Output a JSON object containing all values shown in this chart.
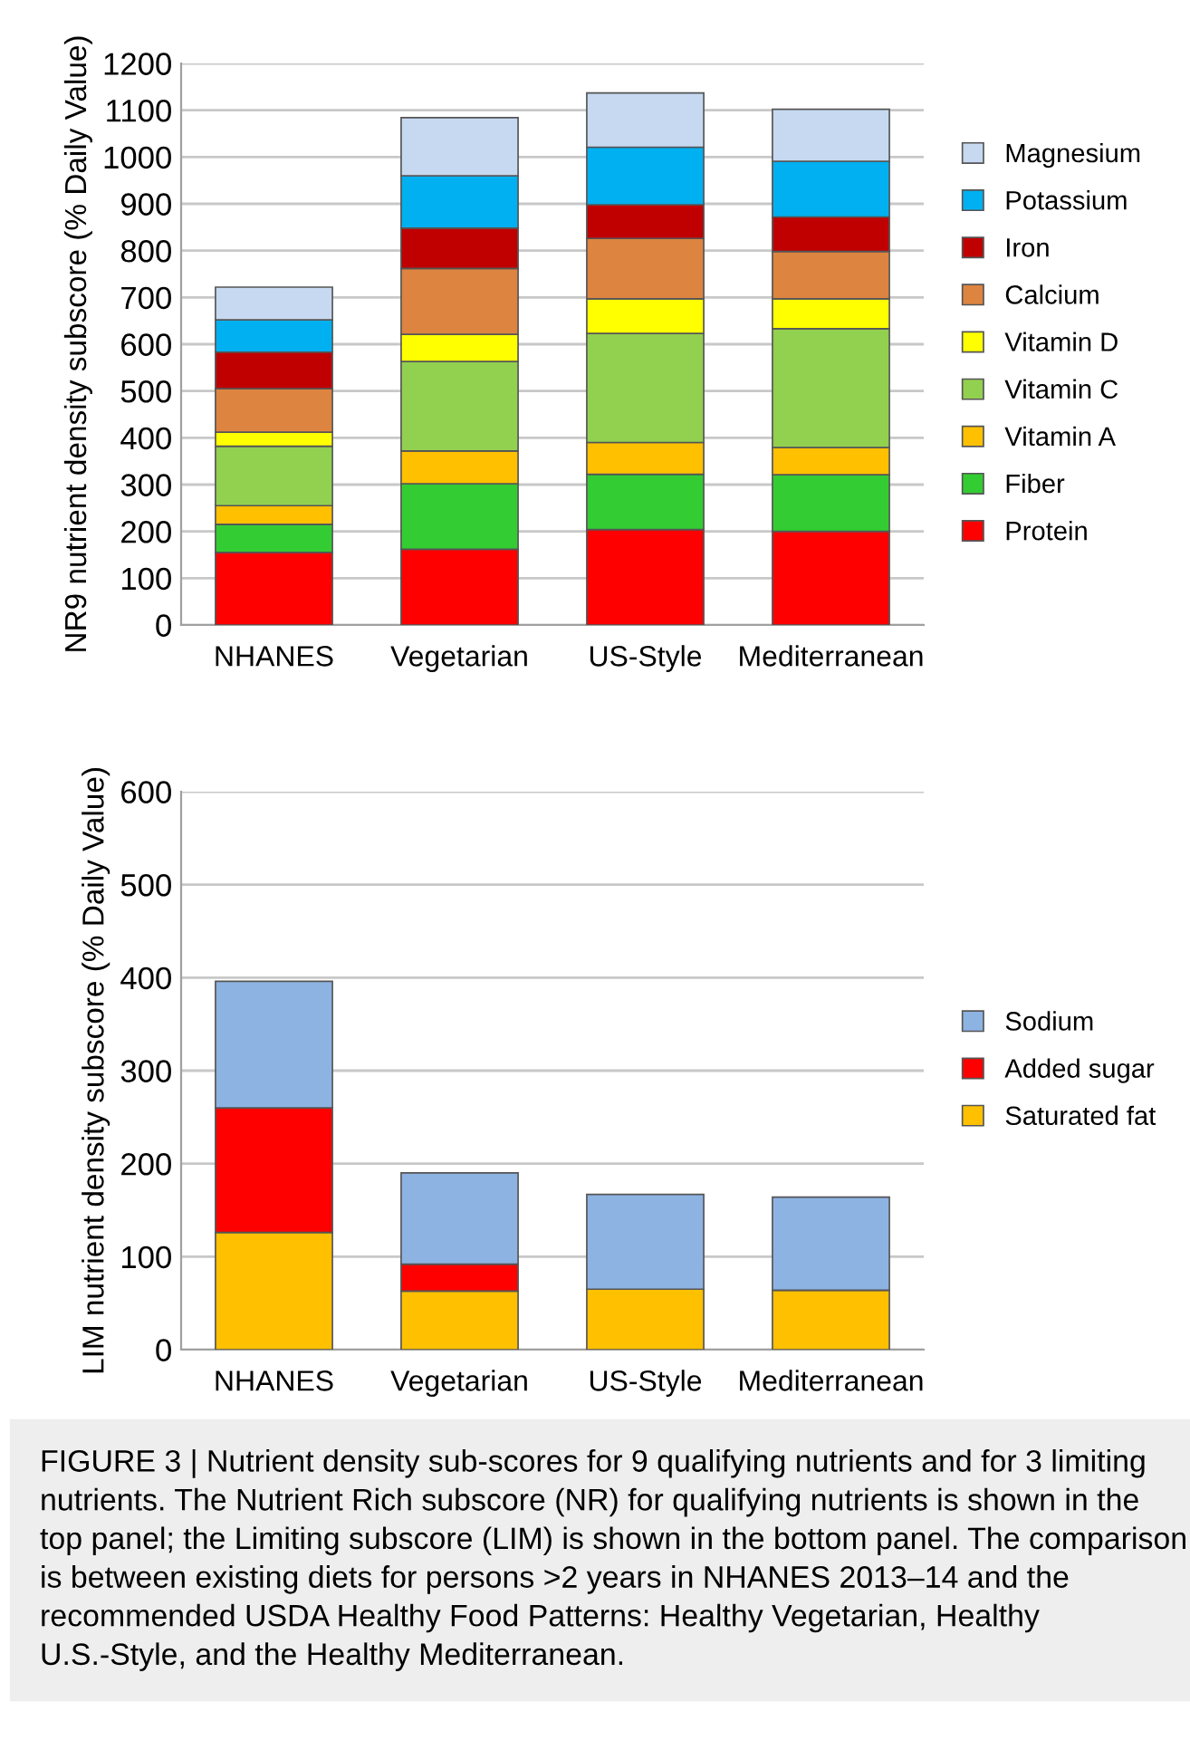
{
  "chart_data": [
    {
      "type": "bar",
      "stacked": true,
      "ylabel": "NR9 nutrient density subscore (% Daily Value)",
      "categories": [
        "NHANES",
        "Vegetarian",
        "US-Style",
        "Mediterranean"
      ],
      "ylim": [
        0,
        1200
      ],
      "yticks": [
        0,
        100,
        200,
        300,
        400,
        500,
        600,
        700,
        800,
        900,
        1000,
        1100,
        1200
      ],
      "grid": "y",
      "legend": "right",
      "series": [
        {
          "name": "Protein",
          "color": "#ff0000",
          "values": [
            155,
            162,
            204,
            200
          ]
        },
        {
          "name": "Fiber",
          "color": "#33cc33",
          "values": [
            60,
            140,
            118,
            121
          ]
        },
        {
          "name": "Vitamin A",
          "color": "#ffc000",
          "values": [
            40,
            70,
            68,
            58
          ]
        },
        {
          "name": "Vitamin C",
          "color": "#92d050",
          "values": [
            127,
            191,
            233,
            254
          ]
        },
        {
          "name": "Vitamin D",
          "color": "#ffff00",
          "values": [
            30,
            58,
            74,
            64
          ]
        },
        {
          "name": "Calcium",
          "color": "#dd8440",
          "values": [
            93,
            141,
            129,
            101
          ]
        },
        {
          "name": "Iron",
          "color": "#c00000",
          "values": [
            78,
            86,
            72,
            74
          ]
        },
        {
          "name": "Potassium",
          "color": "#00b0f0",
          "values": [
            69,
            112,
            123,
            119
          ]
        },
        {
          "name": "Magnesium",
          "color": "#c6d9f1",
          "values": [
            70,
            124,
            116,
            111
          ]
        }
      ]
    },
    {
      "type": "bar",
      "stacked": true,
      "ylabel": "LIM nutrient density subscore (% Daily Value)",
      "categories": [
        "NHANES",
        "Vegetarian",
        "US-Style",
        "Mediterranean"
      ],
      "ylim": [
        0,
        600
      ],
      "yticks": [
        0,
        100,
        200,
        300,
        400,
        500,
        600
      ],
      "grid": "y",
      "legend": "right",
      "series": [
        {
          "name": "Saturated fat",
          "color": "#ffc000",
          "values": [
            126,
            63,
            65,
            64
          ]
        },
        {
          "name": "Added sugar",
          "color": "#ff0000",
          "values": [
            134,
            29,
            0,
            0
          ]
        },
        {
          "name": "Sodium",
          "color": "#8db3e2",
          "values": [
            136,
            98,
            102,
            100
          ]
        }
      ],
      "annotations": [
        "FIGURE 3 | Nutrient density sub-scores for 9 qualifying nutrients and for 3 limiting nutrients. The Nutrient Rich subscore (NR) for qualifying nutrients is shown in the top panel; the Limiting subscore (LIM) is shown in the bottom panel. The comparison is between existing diets for persons >2 years in NHANES 2013–14 and the recommended USDA Healthy Food Patterns: Healthy Vegetarian, Healthy U.S.-Style, and the Healthy Mediterranean."
      ]
    }
  ]
}
